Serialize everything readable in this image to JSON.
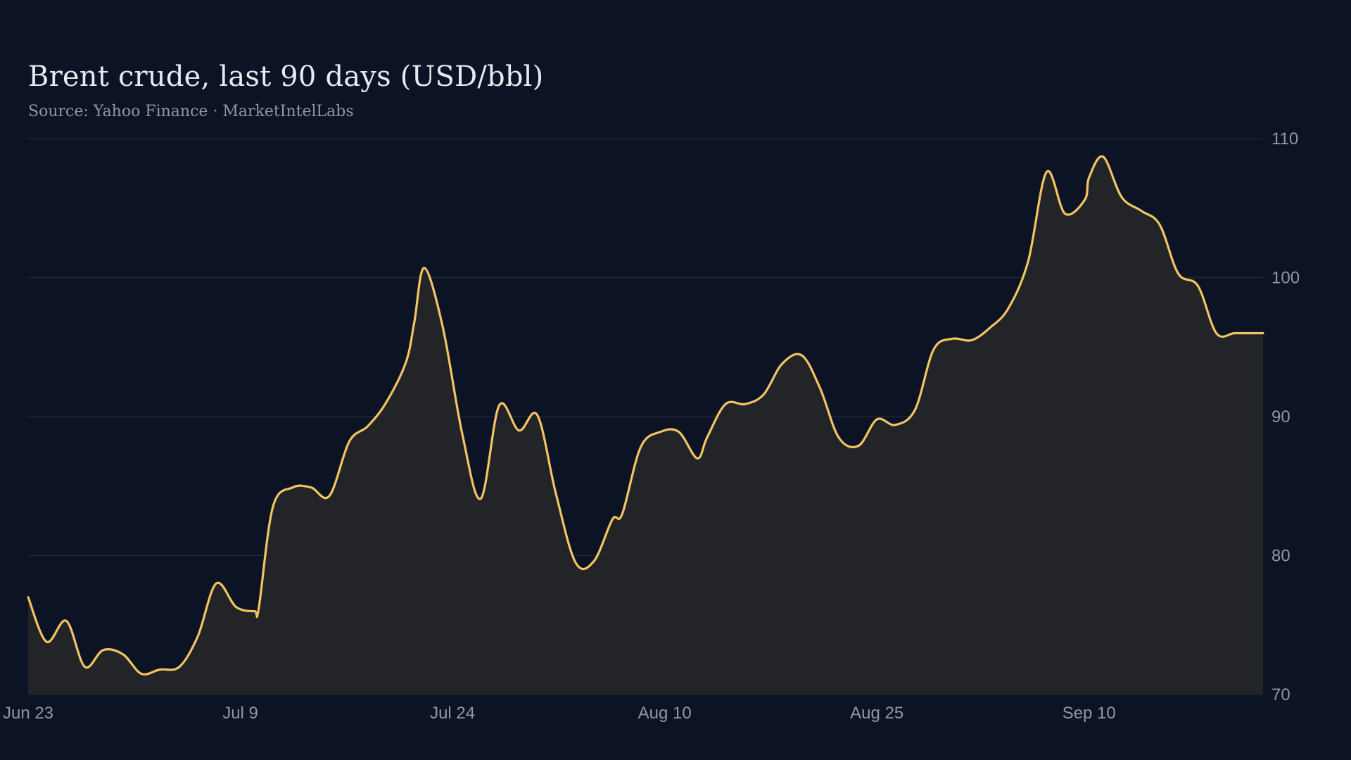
{
  "chart_data": {
    "type": "area",
    "title": "Brent crude, last 90 days (USD/bbl)",
    "subtitle": "Source: Yahoo Finance · MarketIntelLabs",
    "xlabel": "",
    "ylabel": "",
    "ylim": [
      70,
      110
    ],
    "y_ticks": [
      70,
      80,
      90,
      100,
      110
    ],
    "y_axis_position": "right",
    "grid": true,
    "legend": "none",
    "x_ticks": [
      {
        "day": 0,
        "label": "Jun 23"
      },
      {
        "day": 15,
        "label": "Jul  9"
      },
      {
        "day": 30,
        "label": "Jul 24"
      },
      {
        "day": 45,
        "label": "Aug 10"
      },
      {
        "day": 60,
        "label": "Aug 25"
      },
      {
        "day": 75,
        "label": "Sep 10"
      }
    ],
    "series": [
      {
        "x": [
          0,
          1.3,
          2.7,
          4.0,
          5.3,
          6.7,
          8.0,
          9.3,
          10.7,
          12.0,
          13.3,
          14.7,
          16.0,
          16.3,
          17.3,
          18.7,
          20.0,
          21.3,
          22.7,
          24.0,
          25.3,
          26.7,
          27.3,
          28.0,
          29.3,
          30.7,
          32.0,
          33.3,
          34.7,
          36.0,
          37.3,
          38.7,
          40.0,
          41.3,
          42.0,
          43.3,
          44.7,
          46.0,
          47.3,
          48.0,
          49.3,
          50.7,
          52.0,
          53.3,
          54.7,
          56.0,
          57.3,
          58.7,
          60.0,
          61.3,
          62.7,
          64.0,
          65.3,
          66.7,
          68.0,
          69.3,
          70.7,
          72.0,
          73.3,
          74.7,
          75.0,
          76.0,
          77.3,
          78.7,
          80.0,
          81.3,
          82.7,
          84.0,
          85.3,
          86.7,
          87.3
        ],
        "values": [
          77.0,
          73.8,
          75.3,
          72.0,
          73.2,
          72.9,
          71.5,
          71.8,
          72.0,
          74.2,
          78.0,
          76.3,
          76.0,
          76.2,
          83.5,
          84.9,
          84.9,
          84.3,
          88.2,
          89.3,
          91.0,
          93.9,
          96.8,
          100.7,
          96.5,
          88.7,
          84.1,
          90.8,
          89.0,
          90.1,
          84.5,
          79.5,
          79.6,
          82.6,
          83.0,
          87.8,
          88.9,
          88.9,
          87.0,
          88.5,
          90.9,
          90.9,
          91.6,
          93.8,
          94.4,
          92.0,
          88.5,
          87.9,
          89.8,
          89.4,
          90.5,
          94.8,
          95.6,
          95.5,
          96.4,
          97.8,
          101.2,
          107.6,
          104.6,
          105.6,
          107.2,
          108.7,
          105.8,
          104.8,
          103.8,
          100.3,
          99.4,
          96.0,
          96.0,
          96.0,
          96.0
        ]
      }
    ],
    "colors": {
      "background": "#0c1324",
      "line": "#f3c462",
      "area_fill": "#222427",
      "grid": "#1f2a36",
      "title": "#e6e9f0",
      "muted_text": "#8f97a6"
    }
  }
}
